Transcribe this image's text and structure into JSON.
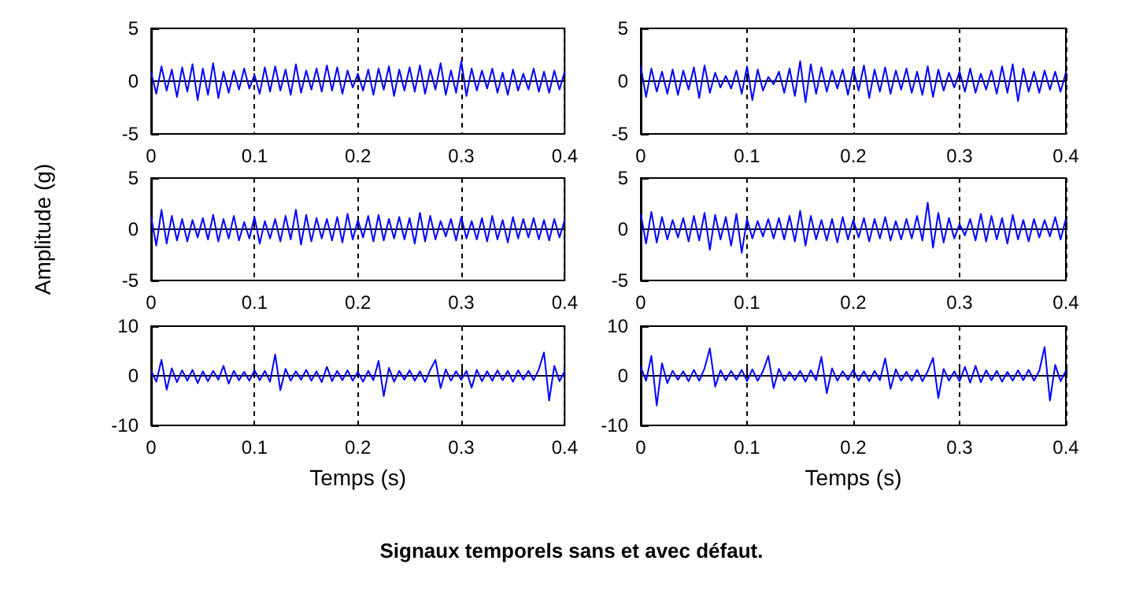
{
  "chart_data": [
    {
      "type": "line",
      "color": "#0000ff",
      "xlim": [
        0,
        0.4
      ],
      "xticks": [
        0,
        0.1,
        0.2,
        0.3,
        0.4
      ],
      "ylim": [
        -5,
        5
      ],
      "yticks": [
        -5,
        0,
        5
      ],
      "grid": "x",
      "annotations": [
        "Signaux temporels sans et avec défaut."
      ],
      "x": [
        0,
        0.005,
        0.01,
        0.015,
        0.02,
        0.025,
        0.03,
        0.035,
        0.04,
        0.045,
        0.05,
        0.055,
        0.06,
        0.065,
        0.07,
        0.075,
        0.08,
        0.085,
        0.09,
        0.095,
        0.1,
        0.105,
        0.11,
        0.115,
        0.12,
        0.125,
        0.13,
        0.135,
        0.14,
        0.145,
        0.15,
        0.155,
        0.16,
        0.165,
        0.17,
        0.175,
        0.18,
        0.185,
        0.19,
        0.195,
        0.2,
        0.205,
        0.21,
        0.215,
        0.22,
        0.225,
        0.23,
        0.235,
        0.24,
        0.245,
        0.25,
        0.255,
        0.26,
        0.265,
        0.27,
        0.275,
        0.28,
        0.285,
        0.29,
        0.295,
        0.3,
        0.305,
        0.31,
        0.315,
        0.32,
        0.325,
        0.33,
        0.335,
        0.34,
        0.345,
        0.35,
        0.355,
        0.36,
        0.365,
        0.37,
        0.375,
        0.38,
        0.385,
        0.39,
        0.395,
        0.4
      ],
      "values": [
        0.8,
        -1.2,
        1.4,
        -0.9,
        1.1,
        -1.5,
        1.3,
        -1.0,
        1.6,
        -1.8,
        1.2,
        -1.3,
        1.7,
        -1.6,
        0.9,
        -1.1,
        1.0,
        -0.8,
        1.2,
        -0.7,
        0.6,
        -1.2,
        1.3,
        -1.0,
        1.4,
        -0.9,
        1.1,
        -1.3,
        1.6,
        -1.1,
        1.0,
        -0.8,
        1.2,
        -1.0,
        1.5,
        -0.9,
        1.3,
        -1.2,
        1.0,
        -0.6,
        0.7,
        -0.9,
        1.1,
        -1.3,
        1.2,
        -0.8,
        1.4,
        -1.4,
        1.1,
        -0.9,
        1.3,
        -1.0,
        1.5,
        -1.2,
        1.1,
        -0.8,
        1.7,
        -1.3,
        1.0,
        -1.1,
        1.9,
        -1.4,
        1.2,
        -0.9,
        1.0,
        -0.7,
        1.2,
        -1.1,
        0.8,
        -1.3,
        1.1,
        -0.9,
        0.7,
        -0.8,
        1.2,
        -1.0,
        0.9,
        -1.1,
        1.0,
        -0.8,
        0.9
      ]
    },
    {
      "type": "line",
      "color": "#0000ff",
      "xlim": [
        0,
        0.4
      ],
      "xticks": [
        0,
        0.1,
        0.2,
        0.3,
        0.4
      ],
      "ylim": [
        -5,
        5
      ],
      "yticks": [
        -5,
        0,
        5
      ],
      "grid": "x",
      "x": [
        0,
        0.005,
        0.01,
        0.015,
        0.02,
        0.025,
        0.03,
        0.035,
        0.04,
        0.045,
        0.05,
        0.055,
        0.06,
        0.065,
        0.07,
        0.075,
        0.08,
        0.085,
        0.09,
        0.095,
        0.1,
        0.105,
        0.11,
        0.115,
        0.12,
        0.125,
        0.13,
        0.135,
        0.14,
        0.145,
        0.15,
        0.155,
        0.16,
        0.165,
        0.17,
        0.175,
        0.18,
        0.185,
        0.19,
        0.195,
        0.2,
        0.205,
        0.21,
        0.215,
        0.22,
        0.225,
        0.23,
        0.235,
        0.24,
        0.245,
        0.25,
        0.255,
        0.26,
        0.265,
        0.27,
        0.275,
        0.28,
        0.285,
        0.29,
        0.295,
        0.3,
        0.305,
        0.31,
        0.315,
        0.32,
        0.325,
        0.33,
        0.335,
        0.34,
        0.345,
        0.35,
        0.355,
        0.36,
        0.365,
        0.37,
        0.375,
        0.38,
        0.385,
        0.39,
        0.395,
        0.4
      ],
      "values": [
        1.4,
        -1.5,
        1.2,
        -1.0,
        0.9,
        -1.2,
        1.1,
        -1.3,
        1.0,
        -0.8,
        1.3,
        -1.6,
        1.5,
        -1.1,
        0.8,
        -0.6,
        0.5,
        -0.7,
        1.0,
        -1.2,
        1.4,
        -1.8,
        1.1,
        -0.9,
        0.4,
        -0.3,
        0.9,
        -1.1,
        1.2,
        -1.4,
        1.9,
        -2.0,
        1.6,
        -1.2,
        1.3,
        -1.0,
        1.0,
        -0.7,
        1.1,
        -1.3,
        1.2,
        -0.9,
        1.5,
        -1.6,
        1.1,
        -1.0,
        1.3,
        -1.2,
        1.0,
        -0.8,
        1.2,
        -1.1,
        0.9,
        -1.3,
        1.4,
        -1.5,
        1.1,
        -0.9,
        0.8,
        -0.6,
        0.9,
        -1.0,
        1.2,
        -1.1,
        0.7,
        -0.8,
        1.0,
        -1.2,
        1.4,
        -1.1,
        1.6,
        -1.9,
        1.2,
        -1.0,
        0.9,
        -1.1,
        1.0,
        -0.8,
        0.9,
        -1.0,
        0.8
      ]
    },
    {
      "type": "line",
      "color": "#0000ff",
      "xlim": [
        0,
        0.4
      ],
      "xticks": [
        0,
        0.1,
        0.2,
        0.3,
        0.4
      ],
      "ylim": [
        -5,
        5
      ],
      "yticks": [
        -5,
        0,
        5
      ],
      "grid": "x",
      "ylabel": "Amplitude (g)",
      "x": [
        0,
        0.005,
        0.01,
        0.015,
        0.02,
        0.025,
        0.03,
        0.035,
        0.04,
        0.045,
        0.05,
        0.055,
        0.06,
        0.065,
        0.07,
        0.075,
        0.08,
        0.085,
        0.09,
        0.095,
        0.1,
        0.105,
        0.11,
        0.115,
        0.12,
        0.125,
        0.13,
        0.135,
        0.14,
        0.145,
        0.15,
        0.155,
        0.16,
        0.165,
        0.17,
        0.175,
        0.18,
        0.185,
        0.19,
        0.195,
        0.2,
        0.205,
        0.21,
        0.215,
        0.22,
        0.225,
        0.23,
        0.235,
        0.24,
        0.245,
        0.25,
        0.255,
        0.26,
        0.265,
        0.27,
        0.275,
        0.28,
        0.285,
        0.29,
        0.295,
        0.3,
        0.305,
        0.31,
        0.315,
        0.32,
        0.325,
        0.33,
        0.335,
        0.34,
        0.345,
        0.35,
        0.355,
        0.36,
        0.365,
        0.37,
        0.375,
        0.38,
        0.385,
        0.39,
        0.395,
        0.4
      ],
      "values": [
        1.2,
        -1.6,
        1.9,
        -1.4,
        1.3,
        -1.1,
        1.0,
        -1.2,
        0.9,
        -0.8,
        1.1,
        -1.0,
        1.4,
        -1.2,
        1.0,
        -0.9,
        1.3,
        -1.1,
        0.7,
        -0.9,
        1.2,
        -1.4,
        0.8,
        -0.9,
        1.0,
        -1.2,
        1.3,
        -1.0,
        1.9,
        -1.5,
        1.4,
        -1.2,
        1.1,
        -0.9,
        1.0,
        -1.1,
        1.2,
        -1.3,
        1.5,
        -1.0,
        0.9,
        -0.8,
        1.3,
        -1.2,
        1.4,
        -1.1,
        1.0,
        -0.9,
        1.2,
        -1.0,
        1.1,
        -1.4,
        1.6,
        -1.2,
        1.3,
        -1.0,
        0.8,
        -0.7,
        1.0,
        -1.1,
        1.2,
        -0.9,
        0.8,
        -1.0,
        1.1,
        -1.2,
        1.3,
        -1.0,
        0.9,
        -1.3,
        1.2,
        -0.9,
        1.0,
        -0.8,
        1.1,
        -1.0,
        0.9,
        -1.1,
        1.0,
        -0.8,
        0.9
      ]
    },
    {
      "type": "line",
      "color": "#0000ff",
      "xlim": [
        0,
        0.4
      ],
      "xticks": [
        0,
        0.1,
        0.2,
        0.3,
        0.4
      ],
      "ylim": [
        -5,
        5
      ],
      "yticks": [
        -5,
        0,
        5
      ],
      "grid": "x",
      "x": [
        0,
        0.005,
        0.01,
        0.015,
        0.02,
        0.025,
        0.03,
        0.035,
        0.04,
        0.045,
        0.05,
        0.055,
        0.06,
        0.065,
        0.07,
        0.075,
        0.08,
        0.085,
        0.09,
        0.095,
        0.1,
        0.105,
        0.11,
        0.115,
        0.12,
        0.125,
        0.13,
        0.135,
        0.14,
        0.145,
        0.15,
        0.155,
        0.16,
        0.165,
        0.17,
        0.175,
        0.18,
        0.185,
        0.19,
        0.195,
        0.2,
        0.205,
        0.21,
        0.215,
        0.22,
        0.225,
        0.23,
        0.235,
        0.24,
        0.245,
        0.25,
        0.255,
        0.26,
        0.265,
        0.27,
        0.275,
        0.28,
        0.285,
        0.29,
        0.295,
        0.3,
        0.305,
        0.31,
        0.315,
        0.32,
        0.325,
        0.33,
        0.335,
        0.34,
        0.345,
        0.35,
        0.355,
        0.36,
        0.365,
        0.37,
        0.375,
        0.38,
        0.385,
        0.39,
        0.395,
        0.4
      ],
      "values": [
        1.5,
        -1.4,
        1.7,
        -1.3,
        1.2,
        -1.0,
        0.9,
        -0.8,
        1.1,
        -1.2,
        1.3,
        -1.1,
        1.6,
        -2.0,
        1.4,
        -1.0,
        1.2,
        -1.6,
        1.5,
        -2.3,
        1.0,
        -0.9,
        0.8,
        -0.7,
        1.0,
        -0.9,
        1.1,
        -1.0,
        1.3,
        -1.2,
        1.8,
        -1.6,
        1.3,
        -1.0,
        0.9,
        -1.1,
        1.0,
        -1.3,
        1.2,
        -1.0,
        0.9,
        -0.8,
        1.1,
        -1.2,
        1.0,
        -0.9,
        1.2,
        -1.1,
        0.8,
        -1.0,
        1.0,
        -0.9,
        1.3,
        -1.1,
        2.6,
        -1.8,
        1.6,
        -1.3,
        1.1,
        -0.9,
        0.5,
        -0.6,
        1.0,
        -1.1,
        1.5,
        -1.2,
        1.3,
        -1.0,
        1.1,
        -1.4,
        1.4,
        -1.0,
        0.9,
        -1.2,
        1.0,
        -0.8,
        0.9,
        -0.7,
        1.2,
        -1.0,
        1.0
      ]
    },
    {
      "type": "line",
      "color": "#0000ff",
      "xlim": [
        0,
        0.4
      ],
      "xticks": [
        0,
        0.1,
        0.2,
        0.3,
        0.4
      ],
      "ylim": [
        -10,
        10
      ],
      "yticks": [
        -10,
        0,
        10
      ],
      "grid": "x",
      "xlabel": "Temps (s)",
      "x": [
        0,
        0.005,
        0.01,
        0.015,
        0.02,
        0.025,
        0.03,
        0.035,
        0.04,
        0.045,
        0.05,
        0.055,
        0.06,
        0.065,
        0.07,
        0.075,
        0.08,
        0.085,
        0.09,
        0.095,
        0.1,
        0.105,
        0.11,
        0.115,
        0.12,
        0.125,
        0.13,
        0.135,
        0.14,
        0.145,
        0.15,
        0.155,
        0.16,
        0.165,
        0.17,
        0.175,
        0.18,
        0.185,
        0.19,
        0.195,
        0.2,
        0.205,
        0.21,
        0.215,
        0.22,
        0.225,
        0.23,
        0.235,
        0.24,
        0.245,
        0.25,
        0.255,
        0.26,
        0.265,
        0.27,
        0.275,
        0.28,
        0.285,
        0.29,
        0.295,
        0.3,
        0.305,
        0.31,
        0.315,
        0.32,
        0.325,
        0.33,
        0.335,
        0.34,
        0.345,
        0.35,
        0.355,
        0.36,
        0.365,
        0.37,
        0.375,
        0.38,
        0.385,
        0.39,
        0.395,
        0.4
      ],
      "values": [
        1.0,
        -1.2,
        3.2,
        -2.8,
        1.5,
        -1.3,
        1.1,
        -1.0,
        1.2,
        -1.5,
        0.9,
        -1.1,
        1.0,
        -0.8,
        2.0,
        -1.6,
        1.0,
        -0.9,
        0.8,
        -1.0,
        1.1,
        -0.9,
        1.0,
        -1.2,
        4.3,
        -2.9,
        1.4,
        -1.0,
        0.9,
        -0.8,
        1.2,
        -1.0,
        0.9,
        -1.3,
        1.8,
        -1.1,
        1.0,
        -0.9,
        1.1,
        -1.0,
        0.8,
        -1.2,
        1.0,
        -0.9,
        3.0,
        -4.1,
        1.6,
        -1.2,
        1.0,
        -0.8,
        1.1,
        -1.0,
        0.9,
        -1.3,
        1.2,
        3.2,
        -2.5,
        1.3,
        -1.0,
        0.9,
        -0.8,
        1.0,
        -2.4,
        1.2,
        -1.1,
        0.9,
        -1.0,
        1.1,
        -0.9,
        1.0,
        -1.2,
        1.1,
        -0.8,
        1.0,
        -0.9,
        1.3,
        4.7,
        -5.0,
        2.0,
        -1.1,
        0.9
      ]
    },
    {
      "type": "line",
      "color": "#0000ff",
      "xlim": [
        0,
        0.4
      ],
      "xticks": [
        0,
        0.1,
        0.2,
        0.3,
        0.4
      ],
      "ylim": [
        -10,
        10
      ],
      "yticks": [
        -10,
        0,
        10
      ],
      "grid": "x",
      "xlabel": "Temps (s)",
      "x": [
        0,
        0.005,
        0.01,
        0.015,
        0.02,
        0.025,
        0.03,
        0.035,
        0.04,
        0.045,
        0.05,
        0.055,
        0.06,
        0.065,
        0.07,
        0.075,
        0.08,
        0.085,
        0.09,
        0.095,
        0.1,
        0.105,
        0.11,
        0.115,
        0.12,
        0.125,
        0.13,
        0.135,
        0.14,
        0.145,
        0.15,
        0.155,
        0.16,
        0.165,
        0.17,
        0.175,
        0.18,
        0.185,
        0.19,
        0.195,
        0.2,
        0.205,
        0.21,
        0.215,
        0.22,
        0.225,
        0.23,
        0.235,
        0.24,
        0.245,
        0.25,
        0.255,
        0.26,
        0.265,
        0.27,
        0.275,
        0.28,
        0.285,
        0.29,
        0.295,
        0.3,
        0.305,
        0.31,
        0.315,
        0.32,
        0.325,
        0.33,
        0.335,
        0.34,
        0.345,
        0.35,
        0.355,
        0.36,
        0.365,
        0.37,
        0.375,
        0.38,
        0.385,
        0.39,
        0.395,
        0.4
      ],
      "values": [
        1.8,
        -1.0,
        4.0,
        -6.0,
        2.5,
        -1.5,
        1.0,
        -0.8,
        0.9,
        -1.1,
        1.2,
        -1.0,
        1.5,
        5.5,
        -2.2,
        1.1,
        -0.9,
        1.0,
        -0.8,
        1.2,
        -1.1,
        1.3,
        -1.0,
        0.9,
        4.0,
        -2.5,
        1.4,
        -1.0,
        0.8,
        -0.9,
        1.0,
        -1.2,
        1.1,
        -0.9,
        3.8,
        -3.5,
        1.5,
        -1.0,
        0.9,
        -0.8,
        1.2,
        -1.0,
        0.9,
        -1.1,
        1.0,
        -0.9,
        3.5,
        -2.6,
        1.3,
        -1.0,
        0.8,
        -1.0,
        1.2,
        -1.1,
        0.9,
        3.6,
        -4.5,
        1.4,
        -1.0,
        0.9,
        -1.1,
        1.8,
        -1.4,
        2.0,
        -1.3,
        1.1,
        -0.9,
        1.0,
        -1.2,
        0.8,
        -1.0,
        1.1,
        -0.9,
        1.2,
        -1.0,
        1.0,
        5.8,
        -5.0,
        2.2,
        -1.1,
        1.0
      ]
    }
  ]
}
